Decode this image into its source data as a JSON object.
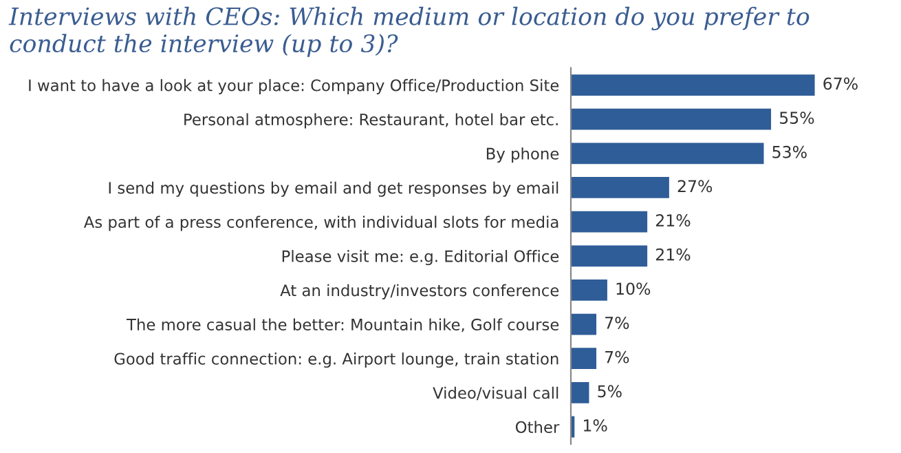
{
  "chart_data": {
    "type": "bar",
    "orientation": "horizontal",
    "title": "Interviews with CEOs: Which medium or location do you prefer to conduct the interview (up to 3)?",
    "categories": [
      "I want to have a look at your place: Company Office/Production Site",
      "Personal atmosphere: Restaurant, hotel bar etc.",
      "By phone",
      "I send my questions by email and get responses by email",
      "As part of a press conference, with individual slots for media",
      "Please visit me: e.g. Editorial Office",
      "At an industry/investors conference",
      "The more casual the better: Mountain hike, Golf course",
      "Good traffic connection: e.g. Airport lounge, train station",
      "Video/visual call",
      "Other"
    ],
    "values": [
      67,
      55,
      53,
      27,
      21,
      21,
      10,
      7,
      7,
      5,
      1
    ],
    "value_labels": [
      "67%",
      "55%",
      "53%",
      "27%",
      "21%",
      "21%",
      "10%",
      "7%",
      "7%",
      "5%",
      "1%"
    ],
    "color": "#2f5d98",
    "grid": false,
    "legend": false
  }
}
